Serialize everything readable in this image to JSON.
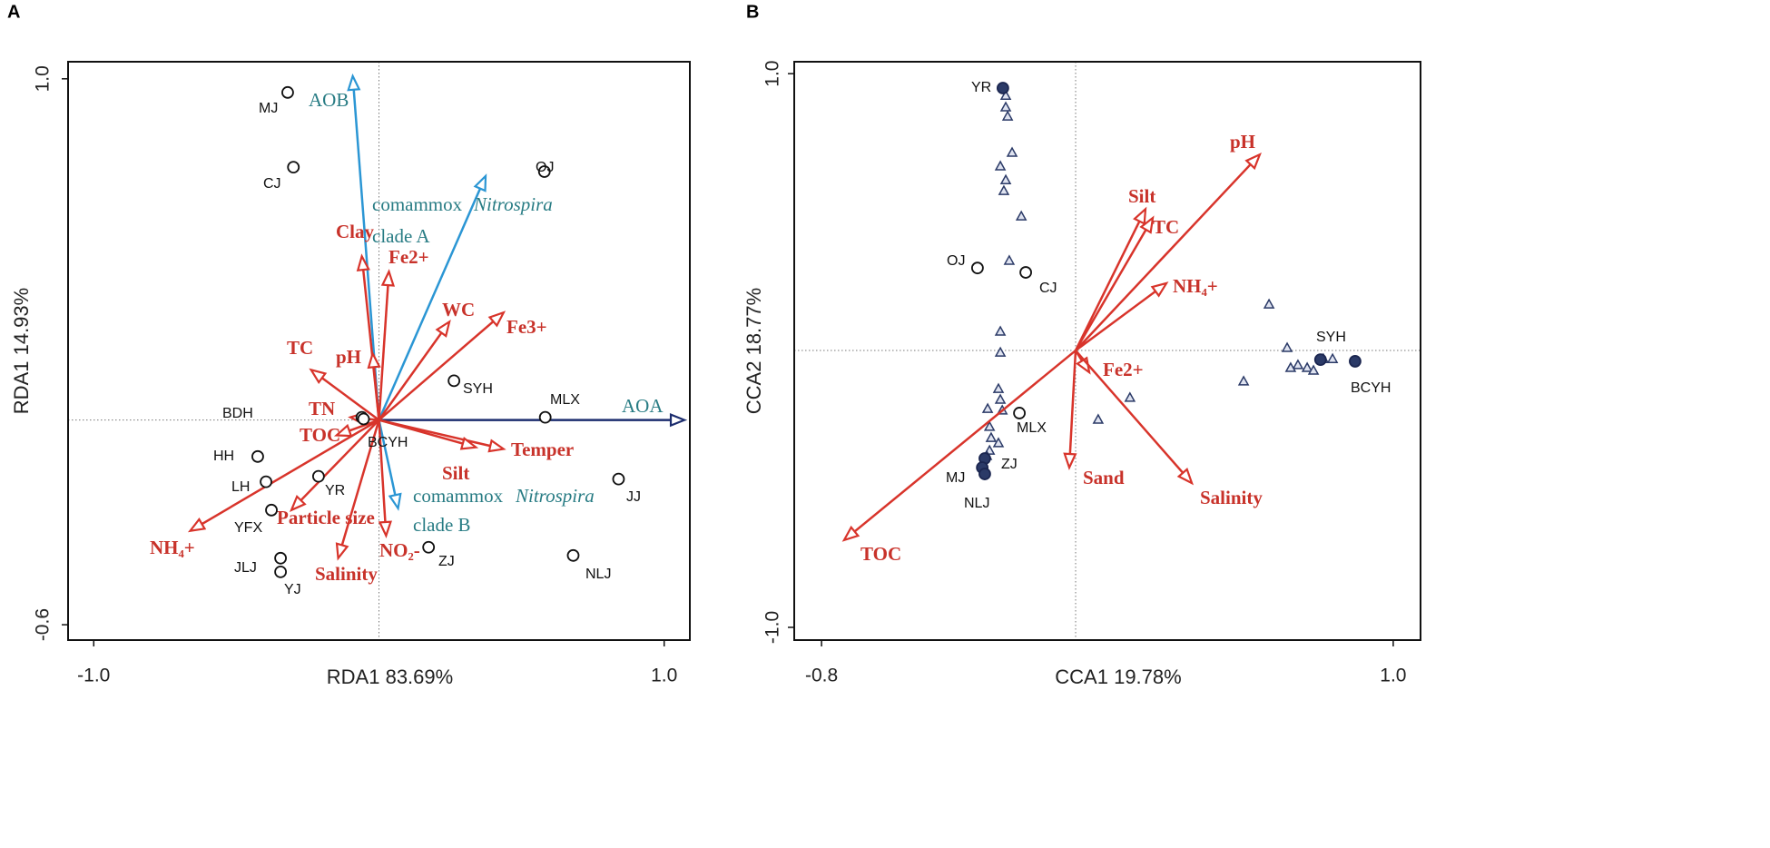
{
  "chart_data": [
    {
      "type": "biplot",
      "panel": "A",
      "xlabel": "RDA1 83.69%",
      "ylabel": "RDA1 14.93%",
      "xlim": [
        -1.09,
        1.09
      ],
      "ylim": [
        -0.645,
        1.05
      ],
      "xticks": [
        {
          "value": -1,
          "label": "-1.0"
        },
        {
          "value": 1,
          "label": "1.0"
        }
      ],
      "yticks": [
        {
          "value": 1,
          "label": "1.0"
        },
        {
          "value": -0.6,
          "label": "-0.6"
        }
      ],
      "vectors": [
        {
          "name": "AOB",
          "x": -0.092,
          "y": 1.008,
          "color": "#2b96d4"
        },
        {
          "name": [
            "comammox",
            "Nitrospira",
            "clade A"
          ],
          "x": 0.374,
          "y": 0.715,
          "color": "#2b96d4"
        },
        {
          "name": "AOA",
          "x": 1.071,
          "y": 0,
          "color": "#1c2d6e"
        },
        {
          "name": [
            "comammox",
            "Nitrospira",
            "clade B"
          ],
          "x": 0.067,
          "y": -0.259,
          "color": "#2b96d4"
        },
        {
          "name": "Clay",
          "x": -0.06,
          "y": 0.48,
          "color": "#d8342b"
        },
        {
          "name": "Fe2+",
          "x": 0.035,
          "y": 0.435,
          "color": "#d8342b"
        },
        {
          "name": "WC",
          "x": 0.247,
          "y": 0.288,
          "color": "#d8342b"
        },
        {
          "name": "Fe3+",
          "x": 0.437,
          "y": 0.315,
          "color": "#d8342b"
        },
        {
          "name": "TC",
          "x": -0.238,
          "y": 0.147,
          "color": "#d8342b"
        },
        {
          "name": "pH",
          "x": -0.022,
          "y": 0.195,
          "color": "#d8342b"
        },
        {
          "name": "TN",
          "x": -0.1,
          "y": 0.008,
          "color": "#d8342b"
        },
        {
          "name": "TOC",
          "x": -0.149,
          "y": -0.045,
          "color": "#d8342b"
        },
        {
          "name": "Temper",
          "x": 0.437,
          "y": -0.085,
          "color": "#d8342b"
        },
        {
          "name": "Silt",
          "x": 0.34,
          "y": -0.08,
          "color": "#d8342b"
        },
        {
          "name": "NH₄+",
          "x": -0.662,
          "y": -0.325,
          "color": "#d8342b"
        },
        {
          "name": "Particle size",
          "x": -0.307,
          "y": -0.264,
          "color": "#d8342b"
        },
        {
          "name": "Salinity",
          "x": -0.143,
          "y": -0.405,
          "color": "#d8342b"
        },
        {
          "name": "NO₂-",
          "x": 0.025,
          "y": -0.339,
          "color": "#d8342b"
        }
      ],
      "sites": {
        "names": [
          "MJ",
          "CJ",
          "OJ",
          "SYH",
          "MLX",
          "BDH",
          "BCYH",
          "HH",
          "LH",
          "YR",
          "YFX",
          "JLJ",
          "YJ",
          "ZJ",
          "JJ",
          "NLJ"
        ],
        "x": [
          -0.32,
          -0.3,
          0.58,
          0.263,
          0.583,
          -0.06,
          -0.054,
          -0.425,
          -0.396,
          -0.212,
          -0.377,
          -0.345,
          -0.345,
          0.174,
          0.84,
          0.681
        ],
        "y": [
          0.96,
          0.741,
          0.728,
          0.115,
          0.008,
          0.008,
          0.003,
          -0.107,
          -0.181,
          -0.165,
          -0.264,
          -0.405,
          -0.445,
          -0.373,
          -0.173,
          -0.397
        ],
        "filled": [
          false,
          false,
          false,
          false,
          false,
          false,
          false,
          false,
          false,
          false,
          false,
          false,
          false,
          false,
          false,
          false
        ]
      }
    },
    {
      "type": "biplot",
      "panel": "B",
      "xlabel": "CCA1 19.78%",
      "ylabel": "CCA2 18.77%",
      "xlim": [
        -0.886,
        1.086
      ],
      "ylim": [
        -1.046,
        1.043
      ],
      "xticks": [
        -0.8,
        {
          "value": 1,
          "label": "1.0"
        }
      ],
      "yticks": [
        {
          "value": 1,
          "label": "1.0"
        },
        {
          "value": -1,
          "label": "-1.0"
        }
      ],
      "vectors": [
        {
          "name": "pH",
          "x": 0.58,
          "y": 0.708,
          "color": "#d8342b"
        },
        {
          "name": "Silt",
          "x": 0.22,
          "y": 0.511,
          "color": "#d8342b"
        },
        {
          "name": "TC",
          "x": 0.243,
          "y": 0.479,
          "color": "#d8342b"
        },
        {
          "name": "NH₄+",
          "x": 0.286,
          "y": 0.243,
          "color": "#d8342b"
        },
        {
          "name": "Fe2+",
          "x": 0.043,
          "y": -0.079,
          "color": "#d8342b"
        },
        {
          "name": "Sand",
          "x": -0.02,
          "y": -0.423,
          "color": "#d8342b"
        },
        {
          "name": "Salinity",
          "x": 0.366,
          "y": -0.479,
          "color": "#d8342b"
        },
        {
          "name": "TOC",
          "x": -0.729,
          "y": -0.685,
          "color": "#d8342b"
        }
      ],
      "sites": {
        "names": [
          "YR",
          "OJ",
          "CJ",
          "SYH",
          "BCYH",
          "MLX",
          "ZJ",
          "MJ",
          "NLJ"
        ],
        "x": [
          -0.229,
          -0.309,
          -0.157,
          0.771,
          0.88,
          -0.177,
          -0.286,
          -0.294,
          -0.286
        ],
        "y": [
          0.948,
          0.298,
          0.282,
          -0.033,
          -0.039,
          -0.226,
          -0.39,
          -0.423,
          -0.446
        ],
        "filled": [
          true,
          false,
          false,
          true,
          true,
          false,
          true,
          true,
          true
        ]
      },
      "samples": {
        "x": [
          -0.22,
          -0.22,
          -0.214,
          -0.2,
          -0.237,
          -0.22,
          -0.226,
          -0.171,
          -0.209,
          -0.237,
          -0.237,
          -0.243,
          -0.237,
          -0.231,
          -0.277,
          -0.271,
          -0.266,
          -0.243,
          -0.271,
          -0.28,
          0.171,
          0.071,
          0.609,
          0.666,
          0.7,
          0.729,
          0.749,
          0.78,
          0.809,
          0.677,
          0.529
        ],
        "y": [
          0.921,
          0.879,
          0.846,
          0.715,
          0.666,
          0.616,
          0.577,
          0.485,
          0.325,
          0.069,
          -0.007,
          -0.138,
          -0.177,
          -0.216,
          -0.21,
          -0.275,
          -0.315,
          -0.334,
          -0.361,
          -0.38,
          -0.17,
          -0.249,
          0.167,
          0.01,
          -0.052,
          -0.062,
          -0.072,
          -0.03,
          -0.03,
          -0.062,
          -0.111
        ]
      }
    }
  ]
}
